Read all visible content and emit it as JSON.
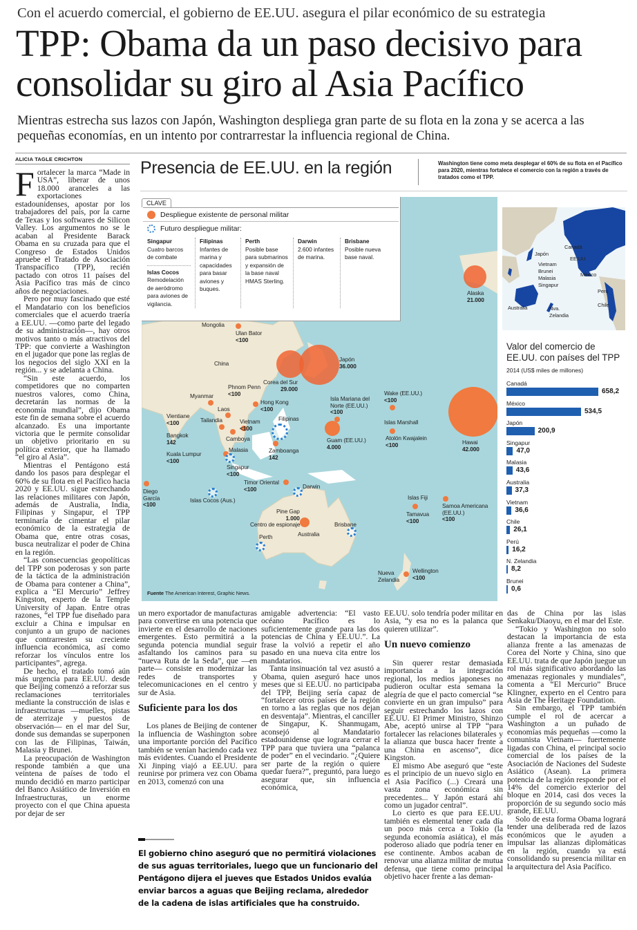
{
  "header": {
    "kicker": "Con el acuerdo comercial, el gobierno de EE.UU. asegura el pilar económico de su estrategia",
    "headline": "TPP: Obama da un paso decisivo para consolidar su giro al Asia Pacífico",
    "deck": "Mientras estrecha sus lazos con Japón, Washington despliega gran parte de su flota en la zona y se acerca a las pequeñas economías, en un intento por contrarrestar la influencia regional de China.",
    "byline": "ALICIA TAGLE CRICHTON"
  },
  "article": {
    "dropcap": "F",
    "left": [
      "ortalecer la marca “Made in USA”, liberar de unos 18.000 aranceles a las exportaciones estadounidenses, apostar por los trabajadores del país, por la carne de Texas y los softwares de Silicon Valley. Los argumentos no se le acaban al Presidente Barack Obama en su cruzada para que el Congreso de Estados Unidos apruebe el Tratado de Asociación Transpacífico (TPP), recién pactado con otros 11 países del Asia Pacífico tras más de cinco años de negociaciones.",
      "Pero por muy fascinado que esté el Mandatario con los beneficios comerciales que el acuerdo traería a EE.UU. —como parte del legado de su administración—, hay otros motivos tanto o más atractivos del TPP: que convierte a Washington en el jugador que pone las reglas de los negocios del siglo XXI en la región... y se adelanta a China.",
      "“Sin este acuerdo, los competidores que no comparten nuestros valores, como China, decretarán las normas de la economía mundial”, dijo Obama este fin de semana sobre el acuerdo alcanzado. Es una importante victoria que le permite consolidar un objetivo prioritario en su política exterior, que ha llamado “el giro al Asia”.",
      "Mientras el Pentágono está dando los pasos para desplegar el 60% de su flota en el Pacífico hacia 2020 y EE.UU. sigue estrechando las relaciones militares con Japón, además de Australia, India, Filipinas y Singapur, el TPP terminaría de cimentar el pilar económico de la estrategia de Obama que, entre otras cosas, busca neutralizar el poder de China en la región.",
      "“Las consecuencias geopolíticas del TPP son poderosas y son parte de la táctica de la administración de Obama para contener a China”, explica a “El Mercurio” Jeffrey Kingston, experto de la Temple University of Japan. Entre otras razones, “el TPP fue diseñado para excluir a China e impulsar en conjunto a un grupo de naciones que contrarresten su creciente influencia económica, así como reforzar los vínculos entre los participantes”, agrega.",
      "De hecho, el tratado tomó aún más urgencia para EE.UU. desde que Beijing comenzó a reforzar sus reclamaciones territoriales mediante la construcción de islas e infraestructuras —muelles, pistas de aterrizaje y puestos de observación— en el mar del Sur, donde sus demandas se superponen con las de Filipinas, Taiwán, Malasia y Brunei.",
      "La preocupación de Washington responde también a que una veintena de países de todo el mundo decidió en marzo participar del Banco Asiático de Inversión en Infraestructuras, un enorme proyecto con el que China apuesta por dejar de ser"
    ],
    "col1": [
      "un mero exportador de manufacturas para convertirse en una potencia que invierte en el desarrollo de naciones emergentes. Esto permitirá a la segunda potencia mundial seguir asfaltando los caminos para su “nueva Ruta de la Seda”, que —en parte— consiste en modernizar las redes de transportes y telecomunicaciones en el centro y sur de Asia."
    ],
    "sub1": "Suficiente para los dos",
    "col1b": [
      "Los planes de Beijing de contener la influencia de Washington sobre una importante porción del Pacífico también se venían haciendo cada vez más evidentes. Cuando el Presidente Xi Jinping viajó a EE.UU. para reunirse por primera vez con Obama en 2013, comenzó con una"
    ],
    "col2": [
      "amigable advertencia: “El vasto océano Pacífico es lo suficientemente grande para las dos potencias de China y EE.UU.”. La frase la volvió a repetir el año pasado en una nueva cita entre los mandatarios.",
      "Tanta insinuación tal vez asustó a Obama, quien aseguró hace unos meses que si EE.UU. no participaba del TPP, Beijing sería capaz de “fortalecer otros países de la región en torno a las reglas que nos dejan en desventaja”. Mientras, el canciller de Singapur, K. Shanmugam, aconsejó al Mandatario estadounidense que lograra cerrar el TPP para que tuviera una “palanca de poder” en el vecindario. “¿Quiere ser parte de la región o quiere quedar fuera?”, preguntó, para luego asegurar que, sin influencia económica,"
    ],
    "col3": [
      "EE.UU. solo tendría poder militar en Asia, “y esa no es la palanca que quieren utilizar”."
    ],
    "sub2": "Un nuevo comienzo",
    "col3b": [
      "Sin querer restar demasiada importancia a la integración regional, los medios japoneses no pudieron ocultar esta semana la alegría de que el pacto comercial “se convierte en un gran impulso” para seguir estrechando los lazos con EE.UU. El Primer Ministro, Shinzo Abe, aceptó unirse al TPP “para fortalecer las relaciones bilaterales y la alianza que busca hacer frente a una China en ascenso”, dice Kingston.",
      "El mismo Abe aseguró que “este es el principio de un nuevo siglo en el Asia Pacífico (...) Creará una vasta zona económica sin precedentes... Y Japón estará ahí como un jugador central”.",
      "Lo cierto es que para EE.UU. también es elemental tener cada día un poco más cerca a Tokio (la segunda economía asiática), el más poderoso aliado que podría tener en ese continente. Ambos acaban de renovar una alianza militar de mutua defensa, que tiene como principal objetivo hacer frente a las deman-"
    ],
    "col4": [
      "das de China por las islas Senkaku/Diaoyu, en el mar del Este.",
      "“Tokio y Washington no solo destacan la importancia de esta alianza frente a las amenazas de Corea del Norte y China, sino que EE.UU. trata de que Japón juegue un rol más significativo abordando las amenazas regionales y mundiales”, comenta a “El Mercurio” Bruce Klingner, experto en el Centro para Asia de The Heritage Foundation.",
      "Sin embargo, el TPP también cumple el rol de acercar a Washington a un puñado de economías más pequeñas —como la comunista Vietnam— fuertemente ligadas con China, el principal socio comercial de los países de la Asociación de Naciones del Sudeste Asiático (Asean). La primera potencia de la región responde por el 14% del comercio exterior del bloque en 2014, casi dos veces la proporción de su segundo socio más grande, EE.UU.",
      "Solo de esta forma Obama logrará tender una deliberada red de lazos económicos que le ayuden a impulsar las alianzas diplomáticas en la región, cuando ya está consolidando su presencia militar en la arquitectura del Asia Pacífico."
    ],
    "pullquote": "El gobierno chino aseguró que no permitirá violaciones de sus aguas territoriales, luego que un funcionario del Pentágono dijera el jueves que Estados Unidos evalúa enviar barcos a aguas que Beijing reclama, alrededor de la cadena de islas artificiales que ha construido."
  },
  "graphic": {
    "title": "Presencia de EE.UU. en la región",
    "side": "Washington tiene como meta desplegar el 60% de su flota en el Pacífico para 2020, mientras fortalece el comercio con la región a través de tratados como el TPP.",
    "key": {
      "tab": "CLAVE",
      "existing": "Despliegue existente de personal militar",
      "future": "Futuro despliegue militar:",
      "items": [
        {
          "t": "Singapur",
          "d": "Cuatro barcos de combate"
        },
        {
          "t": "Islas Cocos",
          "d": "Remodelación de aeródromo para aviones de vigilancia."
        },
        {
          "t": "Filipinas",
          "d": "Infantes de marina y capacidades para basar aviones y buques."
        },
        {
          "t": "Perth",
          "d": "Posible base para submarinos y expansión de la base naval HMAS Sterling."
        },
        {
          "t": "Darwin",
          "d": "2.600 infantes de marina."
        },
        {
          "t": "Brisbane",
          "d": "Posible nueva base naval."
        }
      ]
    },
    "colors": {
      "existing": "#f07a3f",
      "future": "#2a7fd0",
      "sea": "#a9d6dc",
      "land": "#efe8d4",
      "tpp": "#1746a2"
    },
    "regions": [
      "Mongolia",
      "China",
      "Australia"
    ],
    "sites": [
      {
        "name": "Ulan Bator",
        "value": "<100"
      },
      {
        "name": "Corea del Sur",
        "value": "29.000"
      },
      {
        "name": "Japón",
        "value": "36.000"
      },
      {
        "name": "Phnom Penn",
        "value": "<100"
      },
      {
        "name": "Myanmar",
        "value": ""
      },
      {
        "name": "Hong Kong",
        "value": "<100"
      },
      {
        "name": "Laos",
        "value": ""
      },
      {
        "name": "Vientiane",
        "value": "<100"
      },
      {
        "name": "Tailandia",
        "value": ""
      },
      {
        "name": "Vietnam",
        "value": "<100"
      },
      {
        "name": "Bangkok",
        "value": "142"
      },
      {
        "name": "Camboya",
        "value": ""
      },
      {
        "name": "Filipinas",
        "value": ""
      },
      {
        "name": "Zamboanga",
        "value": "142"
      },
      {
        "name": "Kuala Lumpur",
        "value": "<100"
      },
      {
        "name": "Malasia",
        "value": ""
      },
      {
        "name": "Singapur",
        "value": "<100"
      },
      {
        "name": "Diego García",
        "value": "<100"
      },
      {
        "name": "Islas Cocos (Aus.)",
        "value": ""
      },
      {
        "name": "Timor Oriental",
        "value": "<100"
      },
      {
        "name": "Darwin",
        "value": ""
      },
      {
        "name": "Alaska",
        "value": "21.000"
      },
      {
        "name": "Wake (EE.UU.)",
        "value": "<100"
      },
      {
        "name": "Isla Mariana del Norte (EE.UU.)",
        "value": "<100"
      },
      {
        "name": "Islas Marshall",
        "value": ""
      },
      {
        "name": "Atolón Kwajalein",
        "value": "<100"
      },
      {
        "name": "Guam (EE.UU.)",
        "value": "4.000"
      },
      {
        "name": "Hawai",
        "value": "42.000"
      },
      {
        "name": "Islas Fiji",
        "value": ""
      },
      {
        "name": "Tamavua",
        "value": "<100"
      },
      {
        "name": "Samoa Americana (EE.UU.)",
        "value": "<100"
      },
      {
        "name": "Pine Gap",
        "value": "1.000"
      },
      {
        "name": "Centro de espionaje",
        "value": ""
      },
      {
        "name": "Brisbane",
        "value": ""
      },
      {
        "name": "Perth",
        "value": ""
      },
      {
        "name": "Nueva Zelandia",
        "value": ""
      },
      {
        "name": "Wellington",
        "value": "<100"
      }
    ],
    "source_label": "Fuente",
    "source": "The American Interest, Graphic News.",
    "minimap_labels": [
      "Japón",
      "Vietnam",
      "Brunei",
      "Malasia",
      "Singapur",
      "Australia",
      "Nva. Zelandia",
      "Canadá",
      "EE.UU.",
      "México",
      "Perú",
      "Chile"
    ]
  },
  "chart_data": {
    "type": "bar",
    "title": "Valor del comercio de EE.UU. con países del TPP",
    "subtitle": "2014 (US$ miles de millones)",
    "categories": [
      "Canadá",
      "México",
      "Japón",
      "Singapur",
      "Malasia",
      "Australia",
      "Vietnam",
      "Chile",
      "Perú",
      "N. Zelandia",
      "Brunei"
    ],
    "values": [
      658.2,
      534.5,
      200.9,
      47.0,
      43.6,
      37.3,
      36.6,
      26.1,
      16.2,
      8.2,
      0.6
    ],
    "labels": [
      "658,2",
      "534,5",
      "200,9",
      "47,0",
      "43,6",
      "37,3",
      "36,6",
      "26,1",
      "16,2",
      "8,2",
      "0,6"
    ],
    "xlim": [
      0,
      658.2
    ],
    "color": "#1f5fb0"
  }
}
